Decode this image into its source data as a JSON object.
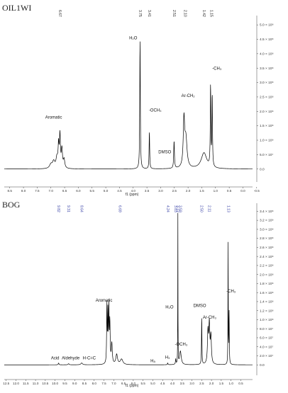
{
  "colors": {
    "trace": "#000000",
    "blue_labels": "#3b44a8",
    "black_labels": "#222222"
  },
  "chart_data": [
    {
      "type": "line",
      "sample_name": "OIL1WI",
      "xlabel": "f1 (ppm)",
      "x_reversed": true,
      "xlim": [
        8.7,
        -0.35
      ],
      "ylim": [
        -40000000.0,
        520000000.0
      ],
      "x_ticks": [
        "8.5",
        "8.0",
        "7.5",
        "7.0",
        "6.5",
        "6.0",
        "5.5",
        "5.0",
        "4.5",
        "4.0",
        "3.5",
        "3.0",
        "2.5",
        "2.0",
        "1.5",
        "1.0",
        "0.5",
        "0.0",
        "-0.5"
      ],
      "y_ticks": [
        "0.0",
        "5.0 × 10⁷",
        "1.0 × 10⁸",
        "1.5 × 10⁸",
        "2.0 × 10⁸",
        "2.5 × 10⁸",
        "3.0 × 10⁸",
        "3.5 × 10⁸",
        "4.0 × 10⁸",
        "4.5 × 10⁸",
        "5.0 × 10⁸"
      ],
      "peak_labels": [
        "6.67",
        "3.75",
        "3.41",
        "2.51",
        "2.10",
        "1.42",
        "1.15"
      ],
      "peaks": [
        {
          "x": 7.0,
          "y": 14000000.0,
          "w": 0.06
        },
        {
          "x": 6.9,
          "y": 23000000.0,
          "w": 0.05
        },
        {
          "x": 6.78,
          "y": 35000000.0,
          "w": 0.04
        },
        {
          "x": 6.72,
          "y": 75000000.0,
          "w": 0.02
        },
        {
          "x": 6.67,
          "y": 110000000.0,
          "w": 0.02
        },
        {
          "x": 6.6,
          "y": 65000000.0,
          "w": 0.025
        },
        {
          "x": 6.52,
          "y": 30000000.0,
          "w": 0.03
        },
        {
          "x": 3.75,
          "y": 450000000.0,
          "w": 0.012
        },
        {
          "x": 3.41,
          "y": 130000000.0,
          "w": 0.012
        },
        {
          "x": 2.51,
          "y": 95000000.0,
          "w": 0.015
        },
        {
          "x": 2.15,
          "y": 160000000.0,
          "w": 0.03
        },
        {
          "x": 2.08,
          "y": 100000000.0,
          "w": 0.05
        },
        {
          "x": 1.42,
          "y": 55000000.0,
          "w": 0.12
        },
        {
          "x": 1.18,
          "y": 280000000.0,
          "w": 0.012
        },
        {
          "x": 1.12,
          "y": 250000000.0,
          "w": 0.012
        }
      ],
      "annotations": [
        {
          "text": "Aromatic",
          "x": 6.9,
          "y": 175000000.0
        },
        {
          "text": "H₂O",
          "x": 4.0,
          "y": 450000000.0
        },
        {
          "text": "-OCH₃",
          "x": 3.2,
          "y": 200000000.0
        },
        {
          "text": "DMSO",
          "x": 2.85,
          "y": 55000000.0
        },
        {
          "text": "Ar-CH₂",
          "x": 2.0,
          "y": 250000000.0
        },
        {
          "text": "-CH₃",
          "x": 0.95,
          "y": 345000000.0
        }
      ]
    },
    {
      "type": "line",
      "sample_name": "BOG",
      "xlabel": "f1 (ppm)",
      "x_reversed": true,
      "xlim": [
        12.6,
        -0.1
      ],
      "ylim": [
        -20000000.0,
        350000000.0
      ],
      "x_ticks": [
        "12.5",
        "12.0",
        "11.5",
        "11.0",
        "10.5",
        "10.0",
        "9.5",
        "9.0",
        "8.5",
        "8.0",
        "7.5",
        "7.0",
        "6.5",
        "6.0",
        "5.5",
        "5.0",
        "4.5",
        "4.0",
        "3.5",
        "3.0",
        "2.5",
        "2.0",
        "1.5",
        "1.0",
        "0.5"
      ],
      "y_ticks": [
        "0.0",
        "2.0 × 10⁷",
        "4.0 × 10⁷",
        "6.0 × 10⁷",
        "8.0 × 10⁷",
        "1.0 × 10⁸",
        "1.2 × 10⁸",
        "1.4 × 10⁸",
        "1.6 × 10⁸",
        "1.8 × 10⁸",
        "2.0 × 10⁸",
        "2.2 × 10⁸",
        "2.4 × 10⁸",
        "2.6 × 10⁸",
        "2.8 × 10⁸",
        "3.0 × 10⁸",
        "3.2 × 10⁸",
        "3.4 × 10⁸"
      ],
      "peak_labels": [
        "9.82",
        "9.31",
        "8.64",
        "6.69",
        "4.24",
        "3.83",
        "3.72",
        "3.59",
        "2.50",
        "2.11",
        "1.13"
      ],
      "peaks": [
        {
          "x": 9.82,
          "y": 4000000.0,
          "w": 0.02
        },
        {
          "x": 9.31,
          "y": 2500000.0,
          "w": 0.03
        },
        {
          "x": 8.64,
          "y": 4000000.0,
          "w": 0.05
        },
        {
          "x": 7.35,
          "y": 130000000.0,
          "w": 0.015
        },
        {
          "x": 7.3,
          "y": 110000000.0,
          "w": 0.015
        },
        {
          "x": 7.25,
          "y": 120000000.0,
          "w": 0.015
        },
        {
          "x": 7.2,
          "y": 90000000.0,
          "w": 0.02
        },
        {
          "x": 7.1,
          "y": 45000000.0,
          "w": 0.03
        },
        {
          "x": 6.85,
          "y": 22000000.0,
          "w": 0.05
        },
        {
          "x": 6.6,
          "y": 12000000.0,
          "w": 0.08
        },
        {
          "x": 4.24,
          "y": 4000000.0,
          "w": 0.015
        },
        {
          "x": 3.83,
          "y": 12000000.0,
          "w": 0.015
        },
        {
          "x": 3.72,
          "y": 340000000.0,
          "w": 0.006
        },
        {
          "x": 3.59,
          "y": 30000000.0,
          "w": 0.05
        },
        {
          "x": 2.5,
          "y": 110000000.0,
          "w": 0.012
        },
        {
          "x": 2.18,
          "y": 70000000.0,
          "w": 0.03
        },
        {
          "x": 2.11,
          "y": 85000000.0,
          "w": 0.03
        },
        {
          "x": 2.03,
          "y": 60000000.0,
          "w": 0.03
        },
        {
          "x": 1.15,
          "y": 280000000.0,
          "w": 0.008
        },
        {
          "x": 1.1,
          "y": 120000000.0,
          "w": 0.012
        }
      ],
      "annotations": [
        {
          "text": "Acid",
          "x": 10.0,
          "y": 12000000.0
        },
        {
          "text": "Aldehyde",
          "x": 9.2,
          "y": 12000000.0
        },
        {
          "text": "H-C=C",
          "x": 8.25,
          "y": 12000000.0
        },
        {
          "text": "Aromatic",
          "x": 7.5,
          "y": 140000000.0
        },
        {
          "text": "H₂O",
          "x": 4.15,
          "y": 125000000.0
        },
        {
          "text": "-OCH₃",
          "x": 3.55,
          "y": 43000000.0
        },
        {
          "text": "H₃",
          "x": 4.25,
          "y": 14000000.0
        },
        {
          "text": "Hₐ",
          "x": 5.0,
          "y": 6000000.0
        },
        {
          "text": "DMSO",
          "x": 2.6,
          "y": 128000000.0
        },
        {
          "text": "Ar-CH₃",
          "x": 2.1,
          "y": 102000000.0
        },
        {
          "text": "-CH₃",
          "x": 1.0,
          "y": 160000000.0
        }
      ]
    }
  ]
}
